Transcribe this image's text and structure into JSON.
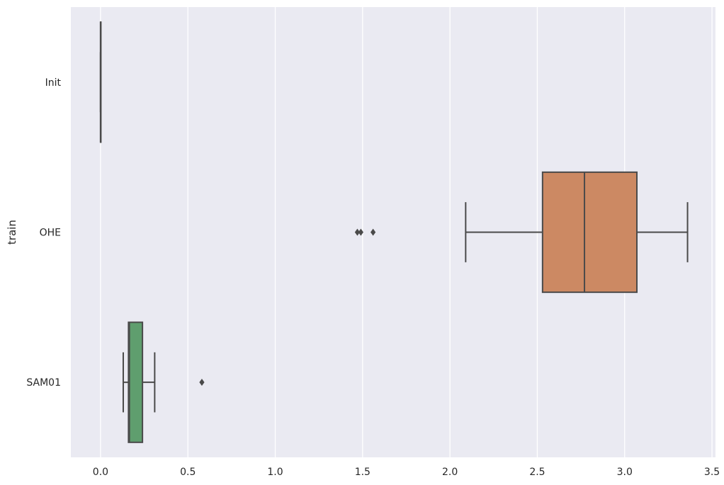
{
  "chart_data": {
    "type": "boxplot",
    "orientation": "horizontal",
    "title": "",
    "xlabel": "",
    "ylabel": "train",
    "xlim": [
      -0.17,
      3.52
    ],
    "xticks": [
      0.0,
      0.5,
      1.0,
      1.5,
      2.0,
      2.5,
      3.0,
      3.5
    ],
    "xtick_labels": [
      "0.0",
      "0.5",
      "1.0",
      "1.5",
      "2.0",
      "2.5",
      "3.0",
      "3.5"
    ],
    "grid": true,
    "background": "#eaeaf2",
    "categories": [
      "Init",
      "OHE",
      "SAM01"
    ],
    "boxes": [
      {
        "category": "Init",
        "color": "#4c72b0",
        "whisker_low": 0.0,
        "q1": 0.0,
        "median": 0.0,
        "q3": 0.0,
        "whisker_high": 0.0,
        "outliers": []
      },
      {
        "category": "OHE",
        "color": "#cc8963",
        "whisker_low": 2.09,
        "q1": 2.53,
        "median": 2.77,
        "q3": 3.07,
        "whisker_high": 3.36,
        "outliers": [
          1.47,
          1.49,
          1.56
        ]
      },
      {
        "category": "SAM01",
        "color": "#5f9e6e",
        "whisker_low": 0.13,
        "q1": 0.16,
        "median": 0.165,
        "q3": 0.24,
        "whisker_high": 0.31,
        "outliers": [
          0.58
        ]
      }
    ]
  }
}
